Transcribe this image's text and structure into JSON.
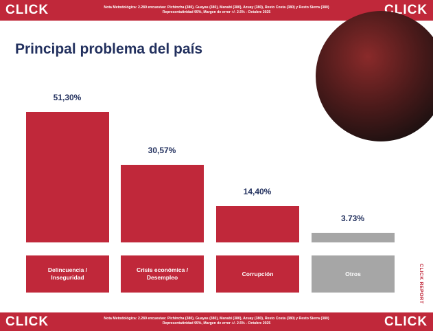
{
  "header": {
    "logo_left": "CLICK",
    "logo_right": "CLICK",
    "note_lines": [
      "Nota Metodológica: 2.280 encuestas: Pichincha (380), Guayas (380), Manabí (380), Azuay (380), Resto Costa (380) y Resto Sierra (380)",
      "Representatividad 95%, Margen de error +/- 2.5% - Octubre 2025"
    ]
  },
  "footer": {
    "logo_left": "CLICK",
    "logo_right": "CLICK",
    "note_lines": [
      "Nota Metodológica: 2.280 encuestas: Pichincha (380), Guayas (380), Manabí (380), Azuay (380), Resto Costa (380) y Resto Sierra (380)",
      "Representatividad 95%, Margen de error +/- 2.5% - Octubre 2025"
    ]
  },
  "side_label": "CLICK REPORT",
  "chart_data": {
    "type": "bar",
    "title": "Principal problema del país",
    "categories": [
      "Delincuencia / Inseguridad",
      "Crisis económica / Desempleo",
      "Corrupción",
      "Otros"
    ],
    "values": [
      51.3,
      30.57,
      14.4,
      3.73
    ],
    "value_labels": [
      "51,30%",
      "30,57%",
      "14,40%",
      "3.73%"
    ],
    "colors": [
      "#c0283a",
      "#c0283a",
      "#c0283a",
      "#a6a6a6"
    ]
  }
}
